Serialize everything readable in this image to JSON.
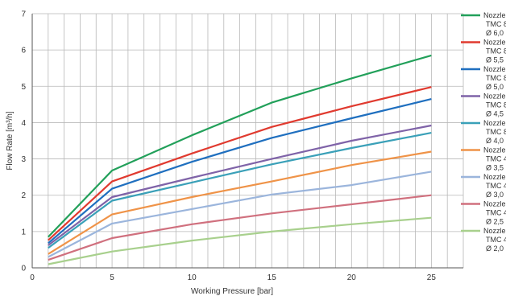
{
  "chart_data": {
    "type": "line",
    "xlabel": "Working Pressure [bar]",
    "ylabel": "Flow Rate [m³/h]",
    "xlim": [
      0,
      27
    ],
    "ylim": [
      0,
      7
    ],
    "xticks": [
      0,
      5,
      10,
      15,
      20,
      25
    ],
    "yticks": [
      0,
      1,
      2,
      3,
      4,
      5,
      6,
      7
    ],
    "grid": true,
    "legend_position": "right",
    "x": [
      1,
      5,
      10,
      15,
      20,
      25
    ],
    "series": [
      {
        "name": "Nozzle TMC 85 Ø 6,0",
        "legend_lines": [
          "Nozzle",
          "TMC 85",
          "Ø 6,0"
        ],
        "color": "#22a05a",
        "values": [
          0.85,
          2.68,
          3.65,
          4.55,
          5.22,
          5.85
        ]
      },
      {
        "name": "Nozzle TMC 85 Ø 5,5",
        "legend_lines": [
          "Nozzle",
          "TMC 85",
          "Ø 5,5"
        ],
        "color": "#e03a2f",
        "values": [
          0.76,
          2.38,
          3.15,
          3.88,
          4.45,
          4.98
        ]
      },
      {
        "name": "Nozzle TMC 85 Ø 5,0",
        "legend_lines": [
          "Nozzle",
          "TMC 85",
          "Ø 5,0"
        ],
        "color": "#1f6fbf",
        "values": [
          0.68,
          2.18,
          2.92,
          3.58,
          4.12,
          4.65
        ]
      },
      {
        "name": "Nozzle TMC 85 Ø 4,5",
        "legend_lines": [
          "Nozzle",
          "TMC 85",
          "Ø 4,5"
        ],
        "color": "#7f63a8",
        "values": [
          0.62,
          1.95,
          2.48,
          3.0,
          3.5,
          3.92
        ]
      },
      {
        "name": "Nozzle TMC 85 Ø 4,0",
        "legend_lines": [
          "Nozzle",
          "TMC 85",
          "Ø 4,0"
        ],
        "color": "#3aa0b8",
        "values": [
          0.55,
          1.85,
          2.35,
          2.85,
          3.3,
          3.72
        ]
      },
      {
        "name": "Nozzle TMC 45 Ø 3,5",
        "legend_lines": [
          "Nozzle",
          "TMC 45",
          "Ø 3,5"
        ],
        "color": "#ef9348",
        "values": [
          0.38,
          1.47,
          1.95,
          2.38,
          2.83,
          3.2
        ]
      },
      {
        "name": "Nozzle TMC 45 Ø 3,0",
        "legend_lines": [
          "Nozzle",
          "TMC 45",
          "Ø 3,0"
        ],
        "color": "#9bb5dc",
        "values": [
          0.3,
          1.22,
          1.62,
          2.02,
          2.28,
          2.65
        ]
      },
      {
        "name": "Nozzle TMC 45 Ø 2,5",
        "legend_lines": [
          "Nozzle",
          "TMC 45",
          "Ø 2,5"
        ],
        "color": "#d0707e",
        "values": [
          0.22,
          0.82,
          1.2,
          1.5,
          1.75,
          2.0
        ]
      },
      {
        "name": "Nozzle TMC 45 Ø 2,0",
        "legend_lines": [
          "Nozzle",
          "TMC 45",
          "Ø 2,0"
        ],
        "color": "#a8d08d",
        "values": [
          0.1,
          0.45,
          0.75,
          1.0,
          1.2,
          1.38
        ]
      }
    ]
  }
}
